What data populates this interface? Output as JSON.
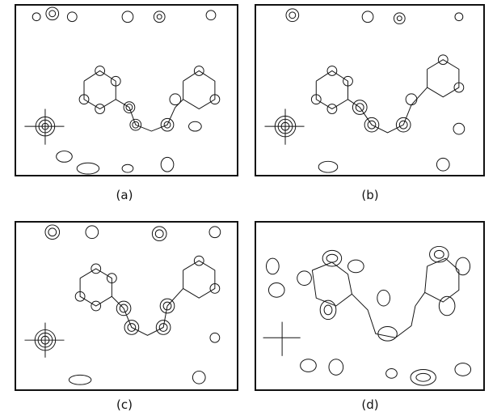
{
  "figure": {
    "panels": [
      {
        "id": "a",
        "caption": "(a)"
      },
      {
        "id": "b",
        "caption": "(b)"
      },
      {
        "id": "c",
        "caption": "(c)"
      },
      {
        "id": "d",
        "caption": "(d)"
      }
    ]
  }
}
